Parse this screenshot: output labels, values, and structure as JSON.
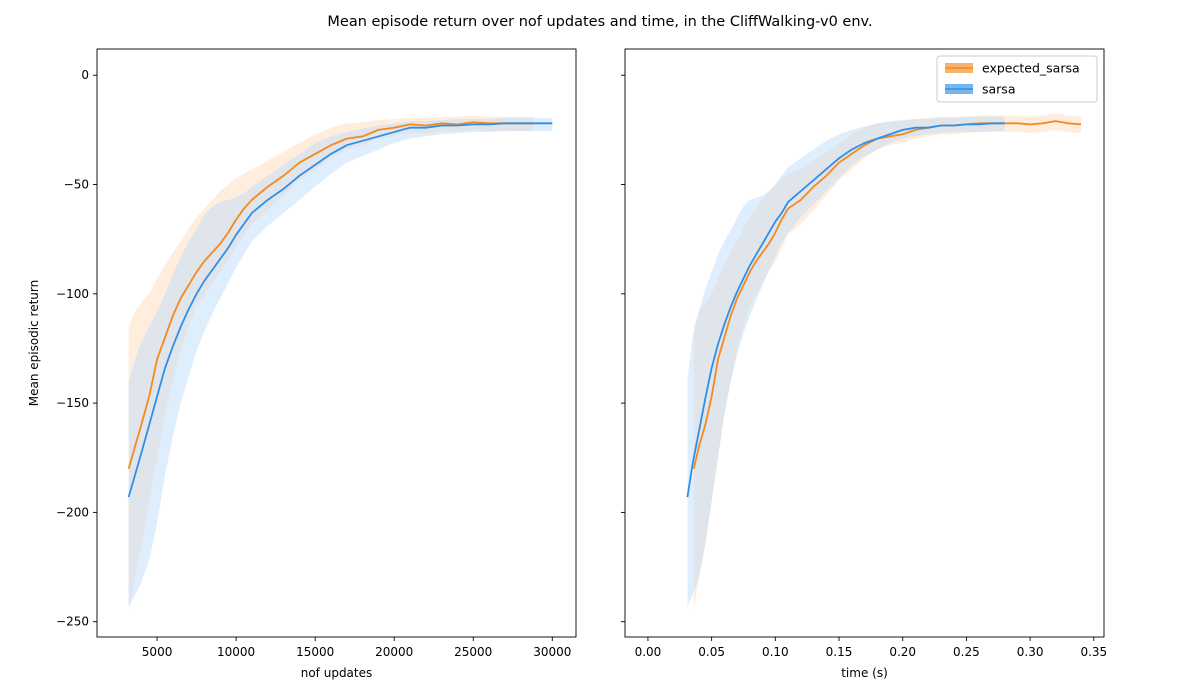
{
  "figure": {
    "suptitle": "Mean episode return over nof updates and time, in the CliffWalking-v0 env."
  },
  "colors": {
    "expected_sarsa": "#f5891c",
    "sarsa": "#2f8fe8",
    "expected_sarsa_band": "#ffd9b3",
    "sarsa_band": "#b8dafa"
  },
  "chart_data": [
    {
      "type": "line",
      "xlabel": "nof updates",
      "ylabel": "Mean episodic return",
      "xlim": [
        1200,
        31500
      ],
      "ylim": [
        -257,
        12
      ],
      "xticks": [
        5000,
        10000,
        15000,
        20000,
        25000,
        30000
      ],
      "xtick_labels": [
        "5000",
        "10000",
        "15000",
        "20000",
        "25000",
        "30000"
      ],
      "yticks": [
        0,
        -50,
        -100,
        -150,
        -200,
        -250
      ],
      "ytick_labels": [
        "0",
        "−50",
        "−100",
        "−150",
        "−200",
        "−250"
      ],
      "series": [
        {
          "key": "expected_sarsa",
          "x": [
            3200,
            3600,
            4000,
            4500,
            5000,
            5500,
            6000,
            6500,
            7000,
            7500,
            8000,
            8500,
            9000,
            9500,
            10000,
            10500,
            11000,
            12000,
            13000,
            14000,
            15000,
            16000,
            17000,
            18000,
            19000,
            20000,
            21000,
            22000,
            23000,
            24000,
            25000,
            26000,
            27000,
            28000,
            28800
          ],
          "y": [
            -180,
            -170,
            -160,
            -147,
            -130,
            -120,
            -110,
            -102,
            -96,
            -90,
            -85,
            -81,
            -77,
            -72,
            -66,
            -61,
            -57,
            -51,
            -46,
            -40,
            -36,
            -32,
            -29,
            -28,
            -25,
            -24,
            -22.5,
            -23,
            -22,
            -22.5,
            -21.5,
            -22,
            -22,
            -22,
            -22
          ],
          "lower": [
            -245,
            -230,
            -215,
            -195,
            -175,
            -155,
            -140,
            -125,
            -115,
            -105,
            -100,
            -95,
            -90,
            -85,
            -79,
            -73,
            -68,
            -62,
            -55,
            -48,
            -43,
            -38,
            -34,
            -32,
            -29,
            -28,
            -26.5,
            -26.5,
            -25.5,
            -26,
            -25,
            -25.5,
            -25.5,
            -25.5,
            -25.5
          ],
          "upper": [
            -115,
            -108,
            -104,
            -100,
            -93,
            -87,
            -81,
            -76,
            -70,
            -65,
            -61,
            -57,
            -53,
            -50,
            -47,
            -45,
            -43,
            -39,
            -35,
            -31,
            -27,
            -24,
            -22,
            -21.5,
            -20.5,
            -20,
            -19.5,
            -19.5,
            -19,
            -19,
            -18.5,
            -19,
            -19,
            -19,
            -19
          ]
        },
        {
          "key": "sarsa",
          "x": [
            3200,
            3600,
            4000,
            4500,
            5000,
            5500,
            6000,
            6500,
            7000,
            7500,
            8000,
            8500,
            9000,
            9500,
            10000,
            10500,
            11000,
            12000,
            13000,
            14000,
            15000,
            16000,
            17000,
            18000,
            19000,
            20000,
            21000,
            22000,
            23000,
            24000,
            25000,
            26000,
            27000,
            28000,
            29000,
            30000
          ],
          "y": [
            -193,
            -183,
            -173,
            -160,
            -147,
            -134,
            -124,
            -115,
            -107,
            -100,
            -94,
            -89,
            -84,
            -79,
            -73,
            -68,
            -63,
            -57,
            -52,
            -46,
            -41,
            -36,
            -32,
            -30,
            -28,
            -26,
            -24,
            -24,
            -23,
            -23,
            -22.5,
            -22.5,
            -22,
            -22,
            -22,
            -22
          ],
          "lower": [
            -243,
            -238,
            -232,
            -222,
            -205,
            -183,
            -165,
            -150,
            -138,
            -126,
            -117,
            -109,
            -102,
            -95,
            -88,
            -82,
            -76,
            -69,
            -63,
            -57,
            -51,
            -45,
            -40,
            -37,
            -34,
            -31,
            -29,
            -28,
            -27,
            -26.5,
            -26,
            -26,
            -25.5,
            -25.5,
            -25.5,
            -25.5
          ],
          "upper": [
            -140,
            -130,
            -122,
            -115,
            -108,
            -100,
            -91,
            -83,
            -76,
            -70,
            -64,
            -60,
            -58,
            -57,
            -56,
            -54,
            -51,
            -46,
            -41,
            -36,
            -31,
            -28,
            -26,
            -24.5,
            -23,
            -22,
            -21,
            -21,
            -20.5,
            -20,
            -20,
            -20,
            -19.5,
            -19.5,
            -19.5,
            -19.5
          ]
        }
      ]
    },
    {
      "type": "line",
      "xlabel": "time (s)",
      "ylabel": "",
      "xlim": [
        -0.018,
        0.358
      ],
      "ylim": [
        -257,
        12
      ],
      "xticks": [
        0.0,
        0.05,
        0.1,
        0.15,
        0.2,
        0.25,
        0.3,
        0.35
      ],
      "xtick_labels": [
        "0.00",
        "0.05",
        "0.10",
        "0.15",
        "0.20",
        "0.25",
        "0.30",
        "0.35"
      ],
      "yticks": [
        0,
        -50,
        -100,
        -150,
        -200,
        -250
      ],
      "ytick_labels": [
        "",
        "",
        "",
        "",
        "",
        ""
      ],
      "legend": {
        "position": "top-right",
        "entries": [
          {
            "key": "expected_sarsa",
            "label": "expected_sarsa"
          },
          {
            "key": "sarsa",
            "label": "sarsa"
          }
        ]
      },
      "series": [
        {
          "key": "expected_sarsa",
          "x": [
            0.036,
            0.04,
            0.045,
            0.05,
            0.055,
            0.06,
            0.065,
            0.07,
            0.075,
            0.08,
            0.085,
            0.09,
            0.095,
            0.1,
            0.105,
            0.11,
            0.12,
            0.13,
            0.14,
            0.15,
            0.16,
            0.17,
            0.18,
            0.19,
            0.2,
            0.21,
            0.22,
            0.23,
            0.24,
            0.25,
            0.26,
            0.27,
            0.28,
            0.29,
            0.3,
            0.31,
            0.32,
            0.33,
            0.34
          ],
          "y": [
            -180,
            -170,
            -160,
            -147,
            -130,
            -120,
            -110,
            -102,
            -96,
            -90,
            -85,
            -81,
            -77,
            -72,
            -66,
            -61,
            -57,
            -51,
            -46,
            -40,
            -36,
            -32,
            -29,
            -28,
            -27,
            -25,
            -24,
            -23,
            -23,
            -22.5,
            -22,
            -22,
            -22,
            -22,
            -22.5,
            -22,
            -21,
            -22,
            -22.5
          ],
          "lower": [
            -245,
            -230,
            -215,
            -195,
            -175,
            -155,
            -140,
            -125,
            -115,
            -105,
            -100,
            -95,
            -90,
            -85,
            -79,
            -73,
            -68,
            -62,
            -55,
            -48,
            -43,
            -38,
            -34,
            -32,
            -31,
            -29,
            -28,
            -27,
            -27,
            -26.5,
            -26,
            -26,
            -26,
            -26,
            -26.5,
            -26,
            -25,
            -26,
            -26.5
          ],
          "upper": [
            -115,
            -108,
            -104,
            -100,
            -93,
            -87,
            -81,
            -76,
            -70,
            -65,
            -61,
            -57,
            -53,
            -50,
            -47,
            -45,
            -43,
            -39,
            -35,
            -31,
            -27,
            -24,
            -22,
            -21.5,
            -21,
            -20,
            -19.5,
            -19,
            -19,
            -19,
            -18.5,
            -18.5,
            -18.5,
            -18.5,
            -19,
            -18.5,
            -17.5,
            -18.5,
            -19
          ]
        },
        {
          "key": "sarsa",
          "x": [
            0.031,
            0.035,
            0.04,
            0.045,
            0.05,
            0.055,
            0.06,
            0.065,
            0.07,
            0.075,
            0.08,
            0.085,
            0.09,
            0.095,
            0.1,
            0.105,
            0.11,
            0.12,
            0.13,
            0.14,
            0.15,
            0.16,
            0.17,
            0.18,
            0.19,
            0.2,
            0.21,
            0.22,
            0.23,
            0.24,
            0.25,
            0.26,
            0.27,
            0.28
          ],
          "y": [
            -193,
            -178,
            -163,
            -148,
            -134,
            -123,
            -114,
            -106,
            -99,
            -93,
            -87,
            -82,
            -77,
            -72,
            -67,
            -63,
            -58,
            -53,
            -48,
            -43,
            -38,
            -34,
            -31,
            -29,
            -27,
            -25,
            -24,
            -24,
            -23,
            -23,
            -22.5,
            -22.5,
            -22,
            -22
          ],
          "lower": [
            -243,
            -238,
            -230,
            -215,
            -195,
            -175,
            -155,
            -140,
            -128,
            -118,
            -110,
            -103,
            -96,
            -89,
            -83,
            -77,
            -72,
            -65,
            -59,
            -53,
            -47,
            -41,
            -37,
            -34,
            -31,
            -29,
            -28,
            -27,
            -26.5,
            -26,
            -26,
            -26,
            -25.5,
            -25.5
          ],
          "upper": [
            -140,
            -120,
            -108,
            -98,
            -90,
            -82,
            -76,
            -71,
            -65,
            -60,
            -57,
            -56,
            -55,
            -53,
            -50,
            -46,
            -42,
            -38,
            -34,
            -30,
            -27,
            -25,
            -23.5,
            -22,
            -21,
            -20.5,
            -20,
            -20,
            -19.5,
            -19.5,
            -19,
            -19,
            -19,
            -19
          ]
        }
      ]
    }
  ]
}
